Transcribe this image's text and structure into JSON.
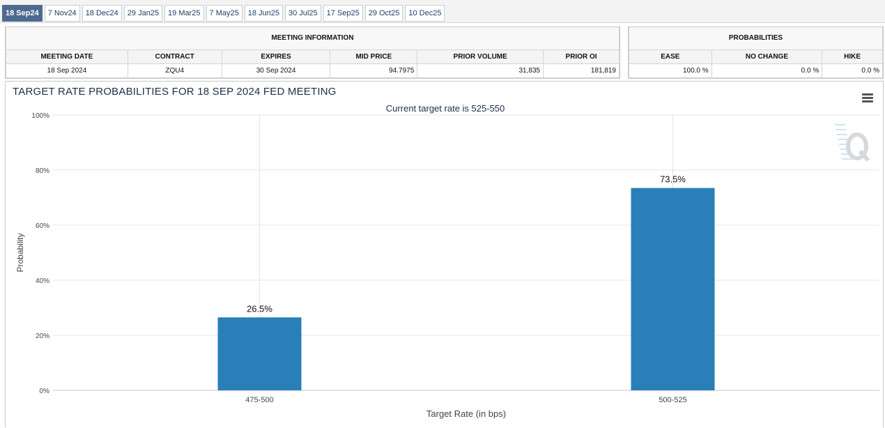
{
  "tabs": [
    {
      "label": "18 Sep24",
      "active": true
    },
    {
      "label": "7 Nov24"
    },
    {
      "label": "18 Dec24"
    },
    {
      "label": "29 Jan25"
    },
    {
      "label": "19 Mar25"
    },
    {
      "label": "7 May25"
    },
    {
      "label": "18 Jun25"
    },
    {
      "label": "30 Jul25"
    },
    {
      "label": "17 Sep25"
    },
    {
      "label": "29 Oct25"
    },
    {
      "label": "10 Dec25"
    }
  ],
  "meeting_info": {
    "title": "MEETING INFORMATION",
    "headers": [
      "MEETING DATE",
      "CONTRACT",
      "EXPIRES",
      "MID PRICE",
      "PRIOR VOLUME",
      "PRIOR OI"
    ],
    "values": [
      "18 Sep 2024",
      "ZQU4",
      "30 Sep 2024",
      "94.7975",
      "31,835",
      "181,819"
    ]
  },
  "probabilities": {
    "title": "PROBABILITIES",
    "headers": [
      "EASE",
      "NO CHANGE",
      "HIKE"
    ],
    "values": [
      "100.0 %",
      "0.0 %",
      "0.0 %"
    ]
  },
  "chart": {
    "title": "TARGET RATE PROBABILITIES FOR 18 SEP 2024 FED MEETING",
    "menu_icon": "hamburger-menu-icon",
    "watermark_icon": "q-logo-icon",
    "bar_color": "#2a7fb8"
  },
  "chart_data": {
    "type": "bar",
    "title": "TARGET RATE PROBABILITIES FOR 18 SEP 2024 FED MEETING",
    "subtitle": "Current target rate is 525-550",
    "categories": [
      "475-500",
      "500-525"
    ],
    "values": [
      26.5,
      73.5
    ],
    "data_labels": [
      "26.5%",
      "73.5%"
    ],
    "xlabel": "Target Rate (in bps)",
    "ylabel": "Probability",
    "ylim": [
      0,
      100
    ],
    "yticks": [
      "0%",
      "20%",
      "40%",
      "60%",
      "80%",
      "100%"
    ],
    "grid": true
  }
}
